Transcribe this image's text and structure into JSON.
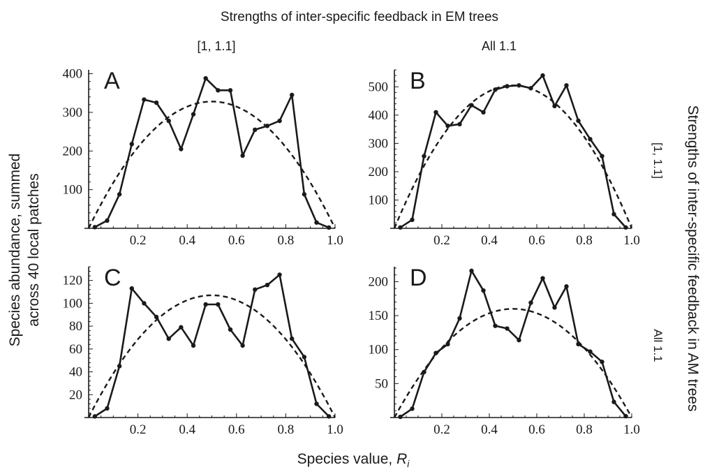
{
  "figure": {
    "top_title": "Strengths of inter-specific feedback in EM trees",
    "right_title": "Strengths of inter-specific feedback in AM trees",
    "ylabel_line1": "Species abundance, summed",
    "ylabel_line2": "across 40 local patches",
    "xlabel_text": "Species value, ",
    "xlabel_var": "R",
    "xlabel_sub": "i",
    "column_labels": [
      "[1, 1.1]",
      "All 1.1"
    ],
    "row_labels": [
      "[1, 1.1]",
      "All 1.1"
    ]
  },
  "colors": {
    "ink": "#1a1a1a",
    "background": "#ffffff"
  },
  "chart_data": [
    {
      "panel": "A",
      "type": "line",
      "xlim": [
        0,
        1.0
      ],
      "ylim": [
        0,
        410
      ],
      "xticks": [
        "0.2",
        "0.4",
        "0.6",
        "0.8",
        "1.0"
      ],
      "yticks": [
        "100",
        "200",
        "300",
        "400"
      ],
      "x": [
        0.025,
        0.075,
        0.125,
        0.175,
        0.225,
        0.275,
        0.325,
        0.375,
        0.425,
        0.475,
        0.525,
        0.575,
        0.625,
        0.675,
        0.725,
        0.775,
        0.825,
        0.875,
        0.925,
        0.975
      ],
      "y": [
        3,
        20,
        88,
        218,
        333,
        325,
        278,
        205,
        295,
        388,
        357,
        357,
        188,
        255,
        265,
        278,
        345,
        88,
        15,
        2
      ],
      "fit_peak": 328
    },
    {
      "panel": "B",
      "type": "line",
      "xlim": [
        0,
        1.0
      ],
      "ylim": [
        0,
        560
      ],
      "xticks": [
        "0.2",
        "0.4",
        "0.6",
        "0.8",
        "1.0"
      ],
      "yticks": [
        "100",
        "200",
        "300",
        "400",
        "500"
      ],
      "x": [
        0.025,
        0.075,
        0.125,
        0.175,
        0.225,
        0.275,
        0.325,
        0.375,
        0.425,
        0.475,
        0.525,
        0.575,
        0.625,
        0.675,
        0.725,
        0.775,
        0.825,
        0.875,
        0.925,
        0.975
      ],
      "y": [
        3,
        30,
        255,
        410,
        362,
        368,
        435,
        410,
        490,
        502,
        505,
        495,
        540,
        432,
        505,
        380,
        315,
        255,
        50,
        3
      ],
      "fit_peak": 505
    },
    {
      "panel": "C",
      "type": "line",
      "xlim": [
        0,
        1.0
      ],
      "ylim": [
        0,
        132
      ],
      "xticks": [
        "0.2",
        "0.4",
        "0.6",
        "0.8",
        "1.0"
      ],
      "yticks": [
        "20",
        "40",
        "60",
        "80",
        "100",
        "120"
      ],
      "x": [
        0.025,
        0.075,
        0.125,
        0.175,
        0.225,
        0.275,
        0.325,
        0.375,
        0.425,
        0.475,
        0.525,
        0.575,
        0.625,
        0.675,
        0.725,
        0.775,
        0.825,
        0.875,
        0.925,
        0.975
      ],
      "y": [
        1,
        8,
        45,
        113,
        100,
        88,
        69,
        79,
        63,
        99,
        99,
        77,
        63,
        112,
        116,
        125,
        69,
        53,
        12,
        1
      ],
      "fit_peak": 107
    },
    {
      "panel": "D",
      "type": "line",
      "xlim": [
        0,
        1.0
      ],
      "ylim": [
        0,
        222
      ],
      "xticks": [
        "0.2",
        "0.4",
        "0.6",
        "0.8",
        "1.0"
      ],
      "yticks": [
        "50",
        "100",
        "150",
        "200"
      ],
      "x": [
        0.025,
        0.075,
        0.125,
        0.175,
        0.225,
        0.275,
        0.325,
        0.375,
        0.425,
        0.475,
        0.525,
        0.575,
        0.625,
        0.675,
        0.725,
        0.775,
        0.825,
        0.875,
        0.925,
        0.975
      ],
      "y": [
        1,
        13,
        67,
        95,
        108,
        146,
        216,
        187,
        135,
        131,
        114,
        169,
        205,
        162,
        193,
        108,
        97,
        82,
        23,
        2
      ],
      "fit_peak": 160
    }
  ]
}
